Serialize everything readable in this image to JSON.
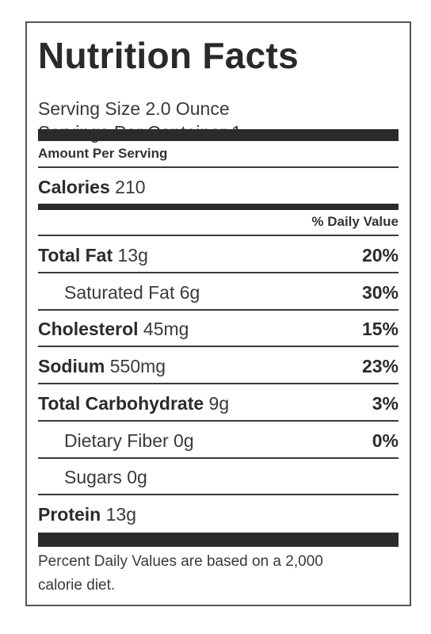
{
  "title": "Nutrition Facts",
  "serving_size": "Serving Size 2.0 Ounce",
  "servings_per_container": "Servings Per Container 1",
  "amount_per_serving": "Amount Per Serving",
  "calories": {
    "label": "Calories",
    "value": "210"
  },
  "daily_value_header": "% Daily Value",
  "nutrients": [
    {
      "name": "Total Fat",
      "amount": "13g",
      "percent": "20%",
      "indent": false
    },
    {
      "name": "Saturated Fat",
      "amount": "6g",
      "percent": "30%",
      "indent": true
    },
    {
      "name": "Cholesterol",
      "amount": "45mg",
      "percent": "15%",
      "indent": false
    },
    {
      "name": "Sodium",
      "amount": "550mg",
      "percent": "23%",
      "indent": false
    },
    {
      "name": "Total Carbohydrate",
      "amount": "9g",
      "percent": "3%",
      "indent": false
    },
    {
      "name": "Dietary Fiber",
      "amount": "0g",
      "percent": "0%",
      "indent": true
    },
    {
      "name": "Sugars",
      "amount": "0g",
      "percent": "",
      "indent": true
    },
    {
      "name": "Protein",
      "amount": "13g",
      "percent": "",
      "indent": false
    }
  ],
  "footnote_line1": "Percent Daily Values are based on a 2,000",
  "footnote_line2": "calorie diet."
}
